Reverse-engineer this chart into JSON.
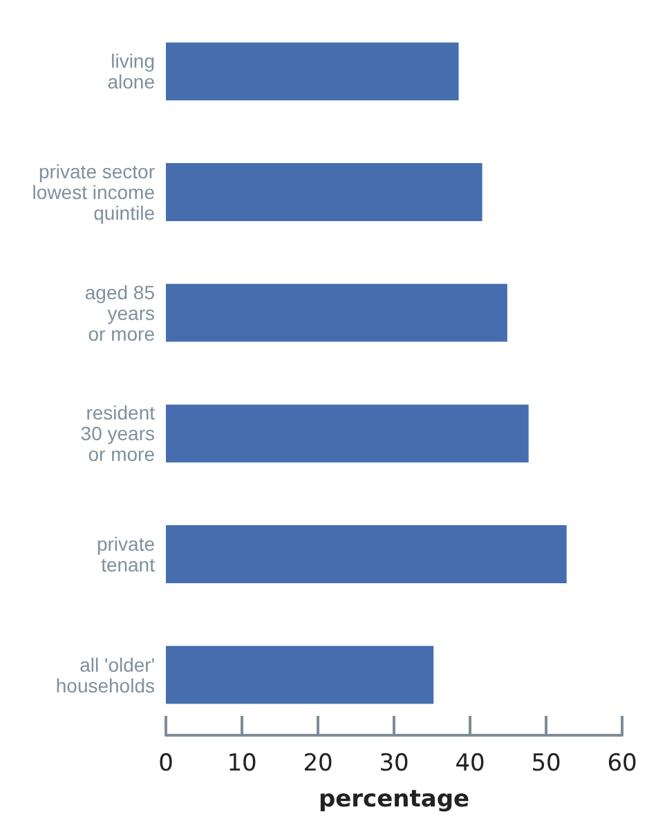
{
  "chart_data": {
    "type": "bar",
    "orientation": "horizontal",
    "xlabel": "percentage",
    "categories": [
      "living\nalone",
      "private sector\nlowest income\nquintile",
      "aged 85\nyears\nor more",
      "resident\n30 years\nor more",
      "private\ntenant",
      "all 'older'\nhouseholds"
    ],
    "values": [
      38.5,
      41.6,
      44.9,
      47.7,
      52.7,
      35.2
    ],
    "color": "#466eae",
    "xlim": [
      0,
      60
    ],
    "xticks": [
      0,
      10,
      20,
      30,
      40,
      50,
      60
    ],
    "grid": false
  }
}
